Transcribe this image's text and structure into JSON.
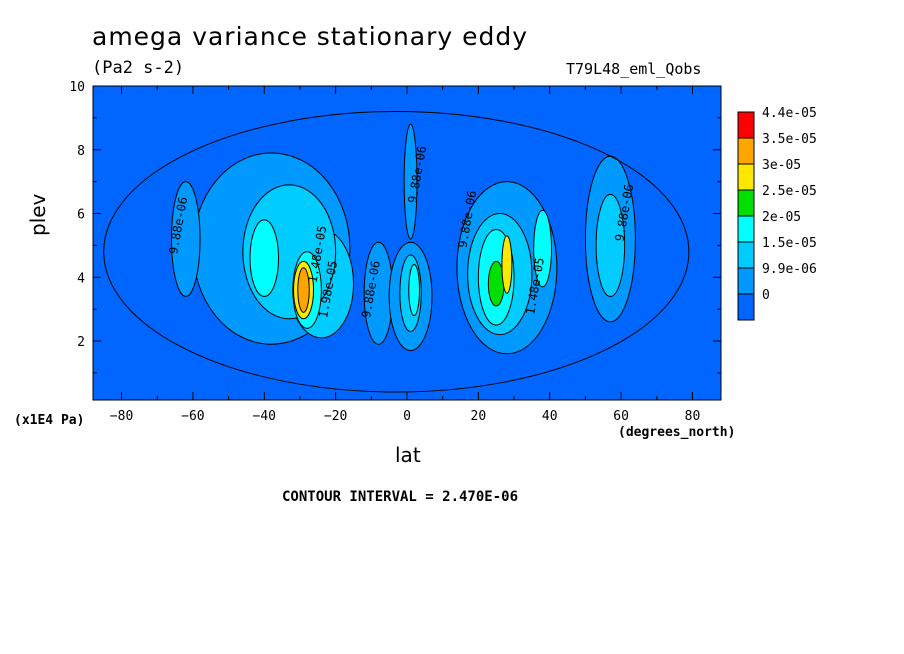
{
  "chart_data": {
    "type": "heatmap",
    "title": "amega variance stationary eddy",
    "units": "(Pa2 s-2)",
    "run_label": "T79L48_eml_Qobs",
    "xlabel": "lat",
    "xunit": "(degrees_north)",
    "ylabel": "plev",
    "yunit": "(x1E4 Pa)",
    "xlim": [
      -88,
      88
    ],
    "ylim": [
      10,
      0.15
    ],
    "xticks": [
      -80,
      -60,
      -40,
      -20,
      0,
      20,
      40,
      60,
      80
    ],
    "yticks": [
      2,
      4,
      6,
      8,
      10
    ],
    "contour_interval_text": "CONTOUR INTERVAL = 2.470E-06",
    "colorbar": {
      "levels": [
        "4.4e-05",
        "3.5e-05",
        "3e-05",
        "2.5e-05",
        "2e-05",
        "1.5e-05",
        "9.9e-06",
        "0"
      ],
      "colors": [
        "#ff0000",
        "#ffa500",
        "#ffe800",
        "#00e000",
        "#00ffff",
        "#00ccff",
        "#0099ff",
        "#0066ff"
      ]
    },
    "contour_labels": [
      {
        "text": "9.88e-06",
        "lat": -63,
        "plev": 5.6
      },
      {
        "text": "1.48e-05",
        "lat": -24,
        "plev": 4.7
      },
      {
        "text": "1.98e-05",
        "lat": -21,
        "plev": 3.6
      },
      {
        "text": "9.88e-06",
        "lat": -9,
        "plev": 3.6
      },
      {
        "text": "9.88e-06",
        "lat": 4,
        "plev": 7.2
      },
      {
        "text": "9.88e-06",
        "lat": 18,
        "plev": 5.8
      },
      {
        "text": "1.48e-05",
        "lat": 37,
        "plev": 3.7
      },
      {
        "text": "9.88e-06",
        "lat": 62,
        "plev": 6.0
      }
    ]
  }
}
